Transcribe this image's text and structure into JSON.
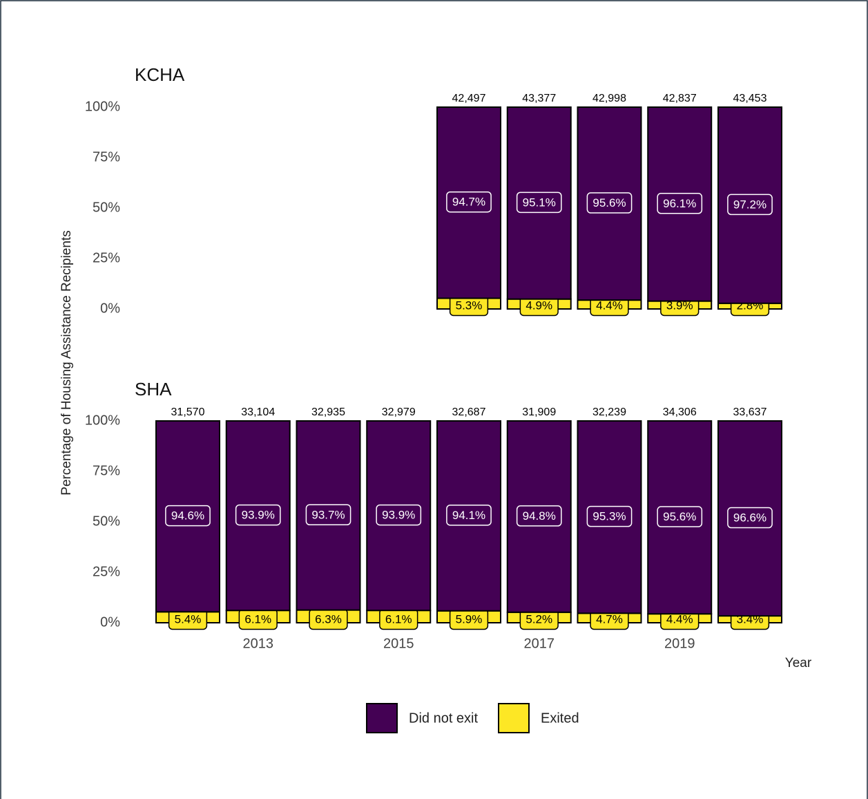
{
  "chart_data": {
    "type": "bar",
    "stacked": true,
    "y_label": "Percentage of Housing Assistance Recipients",
    "x_label": "Year",
    "categories": [
      null,
      "2013",
      null,
      "2015",
      null,
      "2017",
      null,
      "2019",
      null
    ],
    "ylim": [
      0,
      100
    ],
    "yticks": [
      {
        "value": 0,
        "label": "0%"
      },
      {
        "value": 25,
        "label": "25%"
      },
      {
        "value": 50,
        "label": "50%"
      },
      {
        "value": 75,
        "label": "75%"
      },
      {
        "value": 100,
        "label": "100%"
      }
    ],
    "series": [
      {
        "name": "Did not exit",
        "color": "#440154"
      },
      {
        "name": "Exited",
        "color": "#fde725"
      }
    ],
    "facets": [
      {
        "title": "KCHA",
        "totals": [
          null,
          null,
          null,
          null,
          42497,
          43377,
          42998,
          42837,
          43453
        ],
        "total_labels": [
          null,
          null,
          null,
          null,
          "42,497",
          "43,377",
          "42,998",
          "42,837",
          "43,453"
        ],
        "series": [
          {
            "values": [
              null,
              null,
              null,
              null,
              94.7,
              95.1,
              95.6,
              96.1,
              97.2
            ],
            "value_labels": [
              null,
              null,
              null,
              null,
              "94.7%",
              "95.1%",
              "95.6%",
              "96.1%",
              "97.2%"
            ]
          },
          {
            "values": [
              null,
              null,
              null,
              null,
              5.3,
              4.9,
              4.4,
              3.9,
              2.8
            ],
            "value_labels": [
              null,
              null,
              null,
              null,
              "5.3%",
              "4.9%",
              "4.4%",
              "3.9%",
              "2.8%"
            ]
          }
        ]
      },
      {
        "title": "SHA",
        "totals": [
          31570,
          33104,
          32935,
          32979,
          32687,
          31909,
          32239,
          34306,
          33637
        ],
        "total_labels": [
          "31,570",
          "33,104",
          "32,935",
          "32,979",
          "32,687",
          "31,909",
          "32,239",
          "34,306",
          "33,637"
        ],
        "series": [
          {
            "values": [
              94.6,
              93.9,
              93.7,
              93.9,
              94.1,
              94.8,
              95.3,
              95.6,
              96.6
            ],
            "value_labels": [
              "94.6%",
              "93.9%",
              "93.7%",
              "93.9%",
              "94.1%",
              "94.8%",
              "95.3%",
              "95.6%",
              "96.6%"
            ]
          },
          {
            "values": [
              5.4,
              6.1,
              6.3,
              6.1,
              5.9,
              5.2,
              4.7,
              4.4,
              3.4
            ],
            "value_labels": [
              "5.4%",
              "6.1%",
              "6.3%",
              "6.1%",
              "5.9%",
              "5.2%",
              "4.7%",
              "4.4%",
              "3.4%"
            ]
          }
        ]
      }
    ]
  }
}
